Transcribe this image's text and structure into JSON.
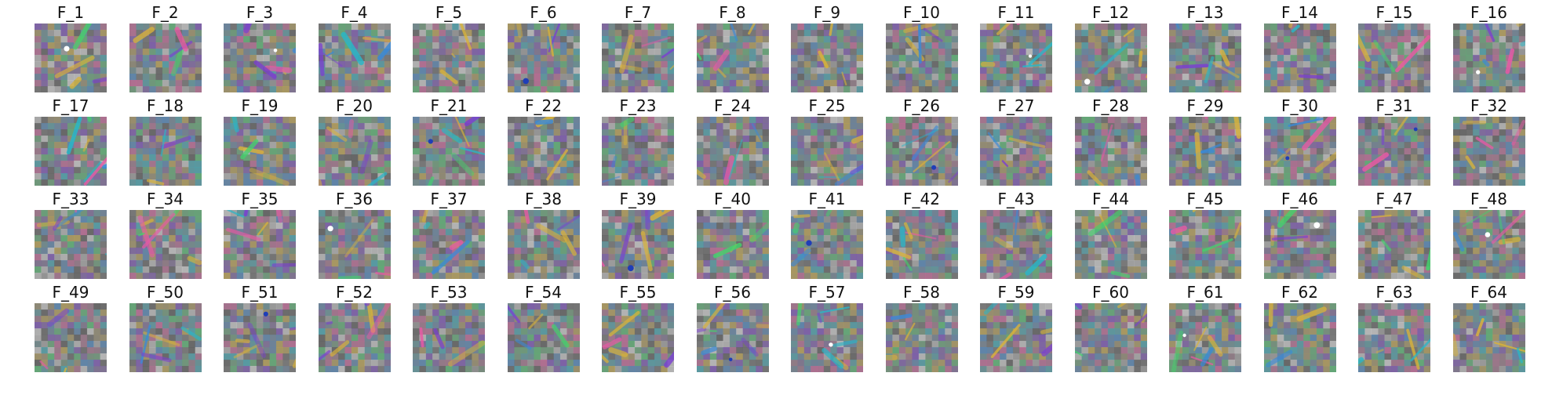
{
  "figure": {
    "background": "#ffffff",
    "tile_base_color": "#808080",
    "grid": {
      "rows": 4,
      "columns": 16
    },
    "filters": [
      {
        "label": "F_1"
      },
      {
        "label": "F_2"
      },
      {
        "label": "F_3"
      },
      {
        "label": "F_4"
      },
      {
        "label": "F_5"
      },
      {
        "label": "F_6"
      },
      {
        "label": "F_7"
      },
      {
        "label": "F_8"
      },
      {
        "label": "F_9"
      },
      {
        "label": "F_10"
      },
      {
        "label": "F_11"
      },
      {
        "label": "F_12"
      },
      {
        "label": "F_13"
      },
      {
        "label": "F_14"
      },
      {
        "label": "F_15"
      },
      {
        "label": "F_16"
      },
      {
        "label": "F_17"
      },
      {
        "label": "F_18"
      },
      {
        "label": "F_19"
      },
      {
        "label": "F_20"
      },
      {
        "label": "F_21"
      },
      {
        "label": "F_22"
      },
      {
        "label": "F_23"
      },
      {
        "label": "F_24"
      },
      {
        "label": "F_25"
      },
      {
        "label": "F_26"
      },
      {
        "label": "F_27"
      },
      {
        "label": "F_28"
      },
      {
        "label": "F_29"
      },
      {
        "label": "F_30"
      },
      {
        "label": "F_31"
      },
      {
        "label": "F_32"
      },
      {
        "label": "F_33"
      },
      {
        "label": "F_34"
      },
      {
        "label": "F_35"
      },
      {
        "label": "F_36"
      },
      {
        "label": "F_37"
      },
      {
        "label": "F_38"
      },
      {
        "label": "F_39"
      },
      {
        "label": "F_40"
      },
      {
        "label": "F_41"
      },
      {
        "label": "F_42"
      },
      {
        "label": "F_43"
      },
      {
        "label": "F_44"
      },
      {
        "label": "F_45"
      },
      {
        "label": "F_46"
      },
      {
        "label": "F_47"
      },
      {
        "label": "F_48"
      },
      {
        "label": "F_49"
      },
      {
        "label": "F_50"
      },
      {
        "label": "F_51"
      },
      {
        "label": "F_52"
      },
      {
        "label": "F_53"
      },
      {
        "label": "F_54"
      },
      {
        "label": "F_55"
      },
      {
        "label": "F_56"
      },
      {
        "label": "F_57"
      },
      {
        "label": "F_58"
      },
      {
        "label": "F_59"
      },
      {
        "label": "F_60"
      },
      {
        "label": "F_61"
      },
      {
        "label": "F_62"
      },
      {
        "label": "F_63"
      },
      {
        "label": "F_64"
      }
    ]
  }
}
